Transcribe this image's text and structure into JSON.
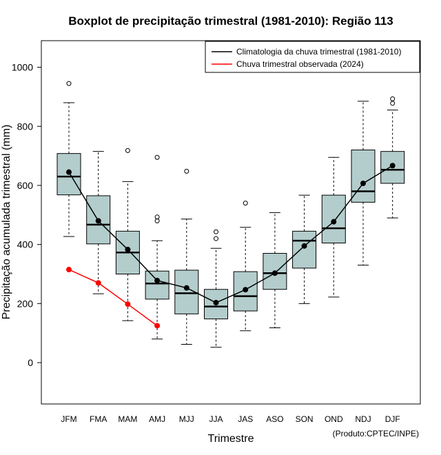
{
  "chart_data": {
    "type": "boxplot",
    "title": "Boxplot de precipitação trimestral (1981-2010): Região 113",
    "xlabel": "Trimestre",
    "ylabel": "Precipitação acumulada trimestral (mm)",
    "credit": "(Produto:CPTEC/INPE)",
    "ylim": [
      -140,
      1090
    ],
    "yticks": [
      0,
      200,
      400,
      600,
      800,
      1000
    ],
    "categories": [
      "JFM",
      "FMA",
      "MAM",
      "AMJ",
      "MJJ",
      "JJA",
      "JAS",
      "ASO",
      "SON",
      "OND",
      "NDJ",
      "DJF"
    ],
    "boxes": [
      {
        "whisker_low": 427,
        "q1": 568,
        "median": 630,
        "q3": 708,
        "whisker_high": 880,
        "outliers": [
          945
        ]
      },
      {
        "whisker_low": 233,
        "q1": 402,
        "median": 467,
        "q3": 565,
        "whisker_high": 715,
        "outliers": []
      },
      {
        "whisker_low": 142,
        "q1": 300,
        "median": 373,
        "q3": 445,
        "whisker_high": 613,
        "outliers": [
          718
        ]
      },
      {
        "whisker_low": 80,
        "q1": 215,
        "median": 268,
        "q3": 310,
        "whisker_high": 413,
        "outliers": [
          480,
          493,
          695
        ]
      },
      {
        "whisker_low": 62,
        "q1": 165,
        "median": 235,
        "q3": 313,
        "whisker_high": 486,
        "outliers": [
          648
        ]
      },
      {
        "whisker_low": 52,
        "q1": 148,
        "median": 190,
        "q3": 248,
        "whisker_high": 387,
        "outliers": [
          420,
          443
        ]
      },
      {
        "whisker_low": 108,
        "q1": 175,
        "median": 225,
        "q3": 308,
        "whisker_high": 458,
        "outliers": [
          540
        ]
      },
      {
        "whisker_low": 118,
        "q1": 248,
        "median": 303,
        "q3": 370,
        "whisker_high": 508,
        "outliers": []
      },
      {
        "whisker_low": 200,
        "q1": 320,
        "median": 413,
        "q3": 445,
        "whisker_high": 567,
        "outliers": []
      },
      {
        "whisker_low": 222,
        "q1": 405,
        "median": 455,
        "q3": 567,
        "whisker_high": 695,
        "outliers": []
      },
      {
        "whisker_low": 330,
        "q1": 543,
        "median": 580,
        "q3": 720,
        "whisker_high": 885,
        "outliers": []
      },
      {
        "whisker_low": 490,
        "q1": 607,
        "median": 653,
        "q3": 715,
        "whisker_high": 855,
        "outliers": [
          878,
          893
        ]
      }
    ],
    "series": [
      {
        "name": "Climatologia da chuva trimestral (1981-2010)",
        "color": "#000000",
        "values": [
          645,
          480,
          383,
          278,
          253,
          203,
          247,
          303,
          395,
          477,
          607,
          667
        ]
      },
      {
        "name": "Chuva trimestral observada (2024)",
        "color": "#ff0000",
        "values": [
          315,
          270,
          198,
          125
        ]
      }
    ],
    "box_fill": "#b3cdcc",
    "legend_position": "top-right"
  }
}
